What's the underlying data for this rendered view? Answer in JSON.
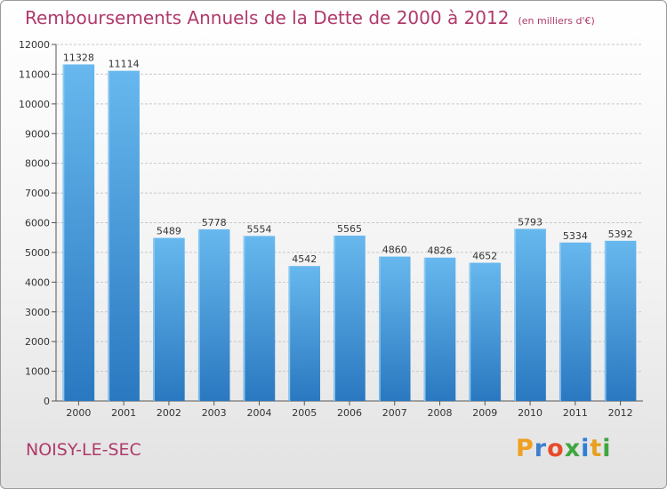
{
  "title": "Remboursements Annuels de la Dette de 2000 à 2012",
  "subtitle": "(en milliers d'€)",
  "commune": "NOISY-LE-SEC",
  "logo": {
    "letters": [
      "P",
      "r",
      "o",
      "x",
      "i",
      "t",
      "i"
    ],
    "colors": [
      "#f0a020",
      "#3f7fd0",
      "#e84b2a",
      "#3fa640",
      "#2f7fd8",
      "#e8a020",
      "#3fa640"
    ]
  },
  "colors": {
    "bar": "#3a8fd6",
    "bar_light": "#67b8ee",
    "grid": "#c8c8c8",
    "title": "#b03a6b"
  },
  "chart_data": {
    "type": "bar",
    "title": "Remboursements Annuels de la Dette de 2000 à 2012",
    "subtitle": "(en milliers d'€)",
    "categories": [
      "2000",
      "2001",
      "2002",
      "2003",
      "2004",
      "2005",
      "2006",
      "2007",
      "2008",
      "2009",
      "2010",
      "2011",
      "2012"
    ],
    "values": [
      11328,
      11114,
      5489,
      5778,
      5554,
      4542,
      5565,
      4860,
      4826,
      4652,
      5793,
      5334,
      5392
    ],
    "ylim": [
      0,
      12000
    ],
    "yticks": [
      0,
      1000,
      2000,
      3000,
      4000,
      5000,
      6000,
      7000,
      8000,
      9000,
      10000,
      11000,
      12000
    ],
    "grid": true
  }
}
